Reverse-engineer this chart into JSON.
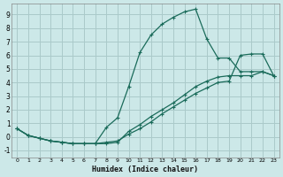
{
  "xlabel": "Humidex (Indice chaleur)",
  "bg_color": "#cce8e8",
  "grid_color": "#aacaca",
  "line_color": "#1a6b5a",
  "xlim": [
    -0.5,
    23.5
  ],
  "ylim": [
    -1.5,
    9.8
  ],
  "xticks": [
    0,
    1,
    2,
    3,
    4,
    5,
    6,
    7,
    8,
    9,
    10,
    11,
    12,
    13,
    14,
    15,
    16,
    17,
    18,
    19,
    20,
    21,
    22,
    23
  ],
  "yticks": [
    -1,
    0,
    1,
    2,
    3,
    4,
    5,
    6,
    7,
    8,
    9
  ],
  "curve1_x": [
    0,
    1,
    2,
    3,
    4,
    5,
    6,
    7,
    8,
    9,
    10,
    11,
    12,
    13,
    14,
    15,
    16,
    17,
    18,
    19,
    20,
    21,
    22,
    23
  ],
  "curve1_y": [
    0.6,
    0.1,
    -0.1,
    -0.3,
    -0.4,
    -0.5,
    -0.5,
    -0.5,
    0.7,
    1.4,
    3.7,
    6.2,
    7.5,
    8.3,
    8.8,
    9.2,
    9.4,
    7.2,
    5.8,
    5.8,
    4.8,
    4.8,
    4.8,
    4.5
  ],
  "curve2_x": [
    0,
    1,
    2,
    3,
    4,
    5,
    6,
    7,
    8,
    9,
    10,
    11,
    12,
    13,
    14,
    15,
    16,
    17,
    18,
    19,
    20,
    21,
    22,
    23
  ],
  "curve2_y": [
    0.6,
    0.1,
    -0.1,
    -0.3,
    -0.4,
    -0.5,
    -0.5,
    -0.5,
    -0.5,
    -0.4,
    0.4,
    0.9,
    1.5,
    2.0,
    2.5,
    3.1,
    3.7,
    4.1,
    4.4,
    4.5,
    4.5,
    4.5,
    4.8,
    4.5
  ],
  "curve3_x": [
    0,
    1,
    2,
    3,
    4,
    5,
    6,
    7,
    8,
    9,
    10,
    11,
    12,
    13,
    14,
    15,
    16,
    17,
    18,
    19,
    20,
    21,
    22,
    23
  ],
  "curve3_y": [
    0.6,
    0.1,
    -0.1,
    -0.3,
    -0.4,
    -0.5,
    -0.5,
    -0.5,
    -0.4,
    -0.3,
    0.2,
    0.6,
    1.1,
    1.7,
    2.2,
    2.7,
    3.2,
    3.6,
    4.0,
    4.1,
    6.0,
    6.1,
    6.1,
    4.5
  ]
}
